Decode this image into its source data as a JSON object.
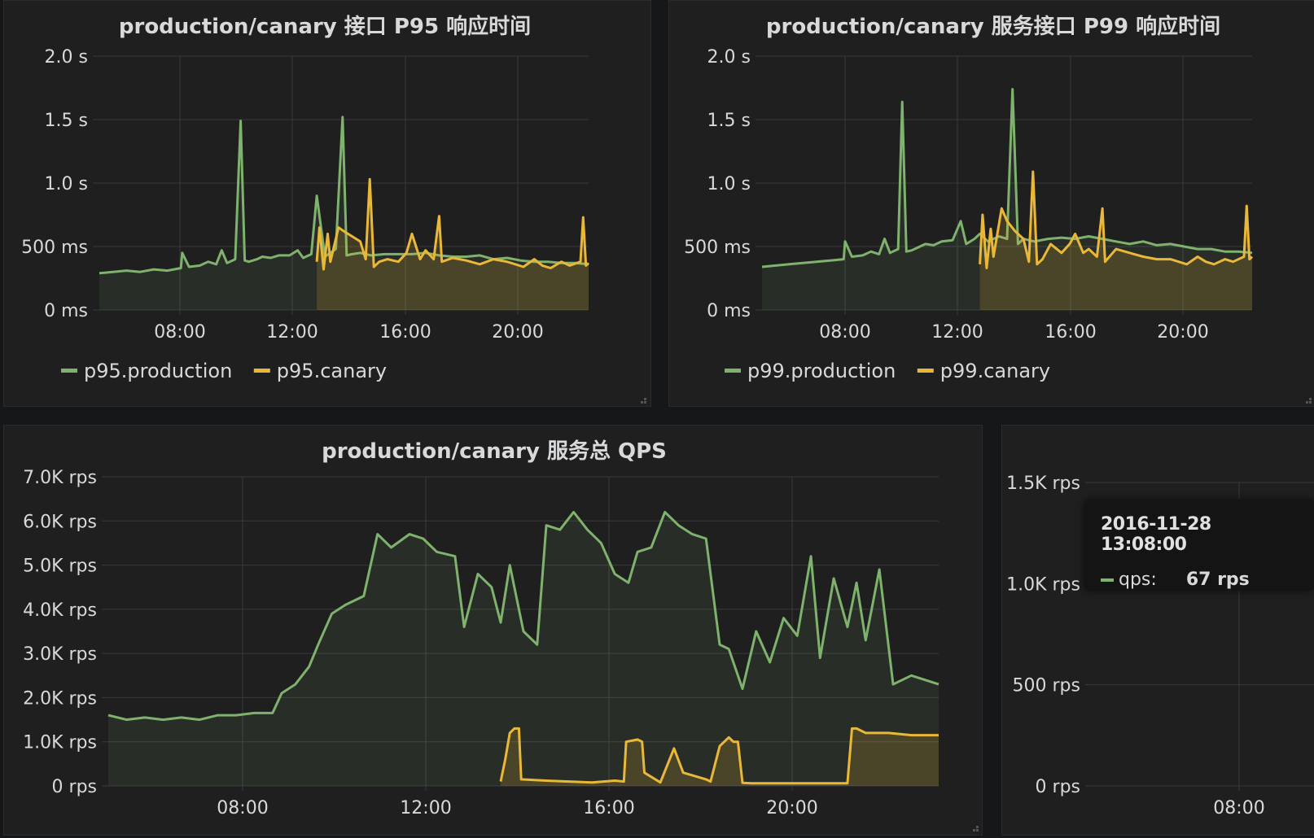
{
  "panels": {
    "p95": {
      "title": "production/canary 接口 P95 响应时间"
    },
    "p99": {
      "title": "production/canary 服务接口 P99 响应时间"
    },
    "qps": {
      "title": "production/canary 服务总 QPS"
    }
  },
  "colors": {
    "production": "#7eb26d",
    "canary": "#eab839",
    "grid": "#3a3a3c",
    "text": "#d8d9da"
  },
  "tooltip": {
    "time": "2016-11-28 13:08:00",
    "series": "qps:",
    "value": "67 rps"
  },
  "chart_data": [
    {
      "type": "line",
      "title": "production/canary 接口 P95 响应时间",
      "ylim": [
        0,
        2000
      ],
      "xlim": [
        5.0,
        23.0
      ],
      "grid": true,
      "legend_placement": "bottom-left",
      "y_ticks": [
        "0 ms",
        "500 ms",
        "1.0 s",
        "1.5 s",
        "2.0 s"
      ],
      "y_tick_values": [
        0,
        500,
        1000,
        1500,
        2000
      ],
      "x_ticks": [
        "08:00",
        "12:00",
        "16:00",
        "20:00"
      ],
      "x_tick_values": [
        8,
        12,
        16,
        20
      ],
      "series": [
        {
          "name": "p95.production",
          "x": [
            5.0,
            5.5,
            6.0,
            6.5,
            7.0,
            7.5,
            8.0,
            8.05,
            8.3,
            8.7,
            9.0,
            9.3,
            9.5,
            9.7,
            10.0,
            10.2,
            10.35,
            10.5,
            10.8,
            11.0,
            11.3,
            11.6,
            12.0,
            12.3,
            12.5,
            12.8,
            13.0,
            13.3,
            13.7,
            13.95,
            14.1,
            14.3,
            14.6,
            15.0,
            15.5,
            16.0,
            16.5,
            17.0,
            17.5,
            18.0,
            18.5,
            19.0,
            19.5,
            20.0,
            20.5,
            21.0,
            21.5,
            22.0,
            22.5,
            23.0
          ],
          "values": [
            290,
            300,
            310,
            300,
            320,
            310,
            330,
            450,
            340,
            350,
            380,
            360,
            470,
            370,
            400,
            1490,
            390,
            380,
            400,
            420,
            410,
            430,
            430,
            470,
            410,
            440,
            900,
            420,
            480,
            1520,
            430,
            440,
            450,
            430,
            440,
            440,
            440,
            450,
            430,
            420,
            420,
            430,
            400,
            410,
            390,
            380,
            380,
            370,
            370,
            360
          ]
        },
        {
          "name": "p95.canary",
          "x": [
            13.0,
            13.1,
            13.25,
            13.4,
            13.5,
            13.8,
            14.0,
            14.3,
            14.6,
            14.8,
            14.95,
            15.1,
            15.3,
            15.6,
            16.0,
            16.3,
            16.5,
            16.8,
            17.0,
            17.3,
            17.5,
            17.6,
            18.0,
            18.5,
            19.0,
            19.5,
            20.0,
            20.3,
            20.6,
            21.0,
            21.3,
            21.6,
            22.0,
            22.3,
            22.7,
            22.8,
            22.9,
            23.0
          ],
          "values": [
            380,
            650,
            320,
            600,
            380,
            650,
            620,
            580,
            540,
            400,
            1030,
            340,
            380,
            400,
            380,
            450,
            600,
            400,
            470,
            400,
            740,
            380,
            410,
            390,
            360,
            400,
            380,
            360,
            340,
            400,
            350,
            330,
            380,
            350,
            380,
            730,
            350,
            370
          ]
        }
      ]
    },
    {
      "type": "line",
      "title": "production/canary 服务接口 P99 响应时间",
      "ylim": [
        0,
        2000
      ],
      "xlim": [
        5.0,
        23.0
      ],
      "grid": true,
      "legend_placement": "bottom-left",
      "y_ticks": [
        "0 ms",
        "500 ms",
        "1.0 s",
        "1.5 s",
        "2.0 s"
      ],
      "y_tick_values": [
        0,
        500,
        1000,
        1500,
        2000
      ],
      "x_ticks": [
        "08:00",
        "12:00",
        "16:00",
        "20:00"
      ],
      "x_tick_values": [
        8,
        12,
        16,
        20
      ],
      "series": [
        {
          "name": "p99.production",
          "x": [
            5.0,
            5.5,
            6.0,
            6.5,
            7.0,
            7.5,
            8.0,
            8.05,
            8.3,
            8.7,
            9.0,
            9.3,
            9.5,
            9.7,
            10.0,
            10.15,
            10.3,
            10.5,
            10.8,
            11.0,
            11.3,
            11.6,
            12.0,
            12.3,
            12.5,
            12.8,
            13.0,
            13.3,
            13.7,
            14.0,
            14.2,
            14.4,
            14.6,
            15.0,
            15.5,
            16.0,
            16.5,
            17.0,
            17.5,
            18.0,
            18.5,
            19.0,
            19.5,
            20.0,
            20.5,
            21.0,
            21.5,
            22.0,
            22.5,
            23.0
          ],
          "values": [
            340,
            350,
            360,
            370,
            380,
            390,
            400,
            540,
            420,
            430,
            460,
            440,
            560,
            450,
            480,
            1640,
            460,
            470,
            500,
            520,
            510,
            540,
            550,
            700,
            520,
            560,
            600,
            540,
            580,
            560,
            1740,
            520,
            560,
            540,
            560,
            570,
            560,
            580,
            560,
            540,
            520,
            540,
            510,
            520,
            500,
            480,
            480,
            460,
            460,
            450
          ]
        },
        {
          "name": "p99.canary",
          "x": [
            13.0,
            13.1,
            13.25,
            13.4,
            13.5,
            13.8,
            14.0,
            14.3,
            14.6,
            14.8,
            14.95,
            15.1,
            15.3,
            15.6,
            16.0,
            16.3,
            16.5,
            16.8,
            17.0,
            17.3,
            17.5,
            17.6,
            18.0,
            18.5,
            19.0,
            19.5,
            20.0,
            20.3,
            20.6,
            21.0,
            21.3,
            21.6,
            22.0,
            22.3,
            22.7,
            22.8,
            22.9,
            23.0
          ],
          "values": [
            360,
            750,
            330,
            640,
            420,
            800,
            700,
            620,
            560,
            380,
            1090,
            360,
            400,
            520,
            450,
            520,
            600,
            450,
            480,
            420,
            800,
            380,
            480,
            450,
            420,
            400,
            400,
            380,
            360,
            420,
            380,
            360,
            400,
            380,
            420,
            820,
            400,
            420
          ]
        }
      ]
    },
    {
      "type": "line",
      "title": "production/canary 服务总 QPS",
      "ylim": [
        0,
        7000
      ],
      "xlim": [
        4.4,
        22.6
      ],
      "grid": true,
      "y_ticks": [
        "0 rps",
        "1.0K rps",
        "2.0K rps",
        "3.0K rps",
        "4.0K rps",
        "5.0K rps",
        "6.0K rps",
        "7.0K rps"
      ],
      "y_tick_values": [
        0,
        1000,
        2000,
        3000,
        4000,
        5000,
        6000,
        7000
      ],
      "x_ticks": [
        "08:00",
        "12:00",
        "16:00",
        "20:00"
      ],
      "x_tick_values": [
        8,
        12,
        16,
        20
      ],
      "series": [
        {
          "name": "production",
          "x": [
            4.4,
            4.8,
            5.2,
            5.6,
            6.0,
            6.4,
            6.8,
            7.2,
            7.6,
            8.0,
            8.2,
            8.5,
            8.8,
            9.0,
            9.3,
            9.6,
            10.0,
            10.3,
            10.6,
            11.0,
            11.3,
            11.6,
            12.0,
            12.2,
            12.5,
            12.8,
            13.0,
            13.2,
            13.5,
            13.8,
            14.0,
            14.3,
            14.6,
            14.9,
            15.2,
            15.5,
            15.8,
            16.0,
            16.3,
            16.6,
            16.9,
            17.2,
            17.5,
            17.8,
            18.0,
            18.3,
            18.6,
            18.9,
            19.2,
            19.5,
            19.8,
            20.0,
            20.3,
            20.6,
            20.8,
            21.0,
            21.3,
            21.6,
            22.0,
            22.3,
            22.6
          ],
          "values": [
            1600,
            1500,
            1550,
            1500,
            1550,
            1500,
            1600,
            1600,
            1650,
            1650,
            2100,
            2300,
            2700,
            3200,
            3900,
            4100,
            4300,
            5700,
            5400,
            5700,
            5600,
            5300,
            5200,
            3600,
            4800,
            4500,
            3700,
            5000,
            3500,
            3200,
            5900,
            5800,
            6200,
            5800,
            5500,
            4800,
            4600,
            5300,
            5400,
            6200,
            5900,
            5700,
            5600,
            3200,
            3100,
            2200,
            3500,
            2800,
            3800,
            3400,
            5200,
            2900,
            4700,
            3600,
            4600,
            3300,
            4900,
            2300,
            2500,
            2400,
            2300
          ]
        },
        {
          "name": "canary",
          "x": [
            13.0,
            13.1,
            13.2,
            13.3,
            13.4,
            13.45,
            14.0,
            14.5,
            15.0,
            15.5,
            15.7,
            15.75,
            16.0,
            16.1,
            16.15,
            16.5,
            16.8,
            17.0,
            17.5,
            17.6,
            17.8,
            18.0,
            18.1,
            18.2,
            18.3,
            18.5,
            19.0,
            19.5,
            20.0,
            20.3,
            20.6,
            20.7,
            20.8,
            21.0,
            21.5,
            22.0,
            22.3,
            22.6
          ],
          "values": [
            100,
            600,
            1200,
            1300,
            1300,
            150,
            120,
            100,
            80,
            120,
            100,
            1000,
            1050,
            1000,
            300,
            80,
            850,
            300,
            150,
            100,
            900,
            1100,
            1000,
            1000,
            70,
            60,
            60,
            60,
            60,
            60,
            60,
            1300,
            1300,
            1200,
            1200,
            1150,
            1150,
            1150
          ]
        }
      ]
    },
    {
      "type": "line",
      "ylim": [
        0,
        1500
      ],
      "grid": true,
      "y_ticks": [
        "0 rps",
        "500 rps",
        "1.0K rps",
        "1.5K rps"
      ],
      "y_tick_values": [
        0,
        500,
        1000,
        1500
      ],
      "x_ticks": [
        "08:00"
      ],
      "x_tick_values": [
        8
      ],
      "series": [
        {
          "name": "qps",
          "x": [],
          "values": []
        }
      ]
    }
  ],
  "legends": {
    "p95": [
      "p95.production",
      "p95.canary"
    ],
    "p99": [
      "p99.production",
      "p99.canary"
    ]
  }
}
